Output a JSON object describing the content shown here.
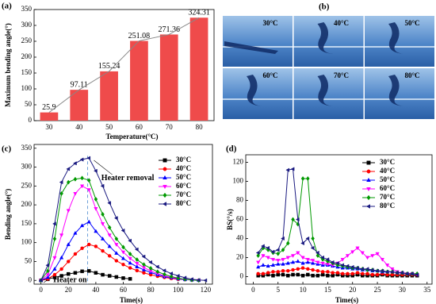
{
  "chart_data": [
    {
      "type": "bar",
      "panel": "(a)",
      "xlabel": "Temperature(°C)",
      "ylabel": "Maximum bending angle(°)",
      "categories": [
        "30",
        "40",
        "50",
        "60",
        "70",
        "80"
      ],
      "values": [
        25.9,
        97.11,
        155.24,
        251.08,
        271.36,
        324.31
      ],
      "color": "#ef4b4b",
      "line_color": "#888888",
      "ylim": [
        0,
        350
      ],
      "yticks": [
        0,
        50,
        100,
        150,
        200,
        250,
        300,
        350
      ]
    },
    {
      "type": "line",
      "panel": "(c)",
      "xlabel": "Time(s)",
      "ylabel": "Bending angle(°)",
      "legend": "upper right",
      "annotations": [
        "Heater removal",
        "Heater on"
      ],
      "x": [
        0,
        5,
        10,
        15,
        20,
        25,
        30,
        35,
        40,
        45,
        50,
        55,
        60,
        65,
        70,
        75,
        80,
        85,
        90,
        95,
        100,
        105,
        110,
        115,
        120
      ],
      "xlim": [
        -5,
        125
      ],
      "xticks": [
        0,
        20,
        40,
        60,
        80,
        100,
        120
      ],
      "ylim": [
        -10,
        360
      ],
      "yticks": [
        0,
        50,
        100,
        150,
        200,
        250,
        300,
        350
      ],
      "series": [
        {
          "name": "30°C",
          "color": "#000000",
          "marker": "square",
          "values": [
            0,
            3,
            8,
            12,
            17,
            20,
            24,
            25,
            20,
            15,
            12,
            9,
            6,
            4,
            null,
            null,
            null,
            null,
            null,
            null,
            null,
            null,
            null,
            null,
            null
          ]
        },
        {
          "name": "40°C",
          "color": "#ff0000",
          "marker": "circle",
          "values": [
            0,
            4,
            15,
            30,
            50,
            70,
            85,
            95,
            90,
            78,
            65,
            52,
            42,
            33,
            26,
            20,
            15,
            11,
            8,
            5,
            3,
            2,
            1,
            0,
            null
          ]
        },
        {
          "name": "50°C",
          "color": "#0000ff",
          "marker": "up",
          "values": [
            0,
            8,
            30,
            60,
            95,
            125,
            145,
            155,
            130,
            110,
            90,
            72,
            58,
            46,
            36,
            28,
            21,
            15,
            10,
            7,
            4,
            2,
            1,
            0,
            null
          ]
        },
        {
          "name": "60°C",
          "color": "#ff00ff",
          "marker": "down",
          "values": [
            0,
            15,
            60,
            120,
            185,
            230,
            250,
            240,
            190,
            150,
            120,
            95,
            75,
            58,
            45,
            34,
            25,
            18,
            12,
            8,
            5,
            3,
            1,
            0,
            null
          ]
        },
        {
          "name": "70°C",
          "color": "#009900",
          "marker": "diamond",
          "values": [
            0,
            25,
            110,
            230,
            260,
            268,
            271,
            265,
            215,
            175,
            140,
            110,
            88,
            70,
            55,
            42,
            32,
            23,
            16,
            10,
            6,
            3,
            1,
            0,
            null
          ]
        },
        {
          "name": "80°C",
          "color": "#1a1a80",
          "marker": "left",
          "values": [
            0,
            40,
            150,
            260,
            295,
            310,
            320,
            324,
            290,
            250,
            205,
            165,
            132,
            105,
            82,
            63,
            48,
            36,
            26,
            18,
            12,
            7,
            3,
            1,
            0
          ]
        }
      ]
    },
    {
      "type": "line",
      "panel": "(d)",
      "xlabel": "Time(s)",
      "ylabel": "BS(°/s)",
      "legend": "upper right",
      "x": [
        1,
        2,
        3,
        4,
        5,
        6,
        7,
        8,
        9,
        10,
        11,
        12,
        13,
        14,
        15,
        16,
        17,
        18,
        19,
        20,
        21,
        22,
        23,
        24,
        25,
        26,
        27,
        28,
        29,
        30,
        31,
        32,
        33
      ],
      "xlim": [
        -1.5,
        36
      ],
      "xticks": [
        0,
        5,
        10,
        15,
        20,
        25,
        30,
        35
      ],
      "ylim": [
        -8,
        128
      ],
      "yticks": [
        0,
        20,
        40,
        60,
        80,
        100,
        120
      ],
      "series": [
        {
          "name": "30°C",
          "color": "#000000",
          "marker": "square",
          "values": [
            1,
            1,
            2,
            1,
            2,
            2,
            1,
            2,
            2,
            1,
            2,
            1,
            1,
            2,
            1,
            1,
            2,
            1,
            1,
            1,
            2,
            1,
            1,
            1,
            1,
            2,
            1,
            1,
            1,
            1,
            1,
            1,
            1
          ]
        },
        {
          "name": "40°C",
          "color": "#ff0000",
          "marker": "circle",
          "values": [
            3,
            3,
            4,
            5,
            5,
            6,
            6,
            7,
            8,
            9,
            8,
            7,
            6,
            5,
            5,
            4,
            4,
            3,
            3,
            3,
            4,
            3,
            3,
            2,
            2,
            3,
            2,
            2,
            2,
            2,
            2,
            2,
            2
          ]
        },
        {
          "name": "50°C",
          "color": "#0000ff",
          "marker": "up",
          "values": [
            10,
            12,
            11,
            12,
            13,
            13,
            14,
            15,
            16,
            14,
            15,
            14,
            13,
            12,
            12,
            11,
            10,
            9,
            9,
            8,
            8,
            7,
            7,
            6,
            6,
            5,
            5,
            5,
            4,
            4,
            3,
            3,
            3
          ]
        },
        {
          "name": "60°C",
          "color": "#ff00ff",
          "marker": "down",
          "values": [
            15,
            22,
            20,
            18,
            17,
            18,
            20,
            22,
            25,
            20,
            18,
            17,
            15,
            14,
            13,
            12,
            14,
            18,
            22,
            26,
            30,
            25,
            20,
            22,
            24,
            18,
            12,
            8,
            5,
            4,
            3,
            3,
            2
          ]
        },
        {
          "name": "70°C",
          "color": "#009900",
          "marker": "diamond",
          "values": [
            22,
            30,
            28,
            25,
            24,
            28,
            35,
            60,
            55,
            103,
            103,
            40,
            22,
            18,
            16,
            14,
            12,
            11,
            10,
            9,
            9,
            8,
            7,
            7,
            6,
            6,
            5,
            5,
            4,
            4,
            3,
            3,
            3
          ]
        },
        {
          "name": "80°C",
          "color": "#1a1a80",
          "marker": "left",
          "values": [
            25,
            32,
            30,
            26,
            28,
            40,
            112,
            113,
            60,
            35,
            40,
            30,
            25,
            20,
            18,
            15,
            14,
            12,
            11,
            10,
            9,
            8,
            8,
            7,
            6,
            6,
            5,
            5,
            4,
            4,
            3,
            3,
            2
          ]
        }
      ]
    }
  ],
  "photos": {
    "panel": "(b)",
    "captions": [
      "30°C",
      "40°C",
      "50°C",
      "60°C",
      "70°C",
      "80°C"
    ]
  }
}
